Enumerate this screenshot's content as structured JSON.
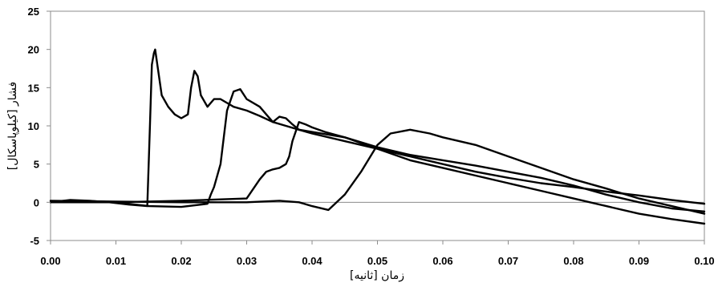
{
  "chart_data": {
    "type": "line",
    "title": "",
    "xlabel": "زمان [ثانیه]",
    "ylabel": "فشار [کیلوپاسکال]",
    "xlim": [
      0.0,
      0.1
    ],
    "ylim": [
      -5,
      25
    ],
    "x_ticks": [
      "0.00",
      "0.01",
      "0.02",
      "0.03",
      "0.04",
      "0.05",
      "0.06",
      "0.07",
      "0.08",
      "0.09",
      "0.10"
    ],
    "y_ticks": [
      "-5",
      "0",
      "5",
      "10",
      "15",
      "20",
      "25"
    ],
    "grid": false,
    "legend": "none",
    "line_color": "#000000",
    "series": [
      {
        "x": [
          0.0,
          0.003,
          0.006,
          0.009,
          0.012,
          0.0148,
          0.0152,
          0.0155,
          0.0158,
          0.016,
          0.0165,
          0.017,
          0.018,
          0.019,
          0.02,
          0.021,
          0.0215,
          0.022,
          0.0225,
          0.023,
          0.024,
          0.025,
          0.026,
          0.027,
          0.028,
          0.03,
          0.032,
          0.034,
          0.036,
          0.038,
          0.04,
          0.045,
          0.05,
          0.055,
          0.06,
          0.065,
          0.07,
          0.075,
          0.08,
          0.085,
          0.09,
          0.095,
          0.1
        ],
        "y": [
          0,
          0.3,
          0.2,
          0,
          -0.3,
          -0.5,
          10,
          18,
          19.5,
          20,
          17,
          14,
          12.5,
          11.5,
          11,
          11.5,
          15,
          17.2,
          16.5,
          14,
          12.5,
          13.5,
          13.5,
          13,
          12.5,
          12,
          11.3,
          10.5,
          10,
          9.5,
          9,
          8,
          7,
          6,
          5,
          4,
          3.2,
          2.5,
          2,
          1.4,
          0.9,
          0.3,
          -0.2
        ]
      },
      {
        "x": [
          0.0,
          0.005,
          0.01,
          0.015,
          0.02,
          0.024,
          0.0245,
          0.025,
          0.025,
          0.026,
          0.027,
          0.028,
          0.029,
          0.03,
          0.032,
          0.033,
          0.034,
          0.035,
          0.036,
          0.037,
          0.038,
          0.04,
          0.045,
          0.05,
          0.055,
          0.06,
          0.065,
          0.07,
          0.075,
          0.08,
          0.085,
          0.09,
          0.095,
          0.1
        ],
        "y": [
          0,
          0.2,
          0,
          -0.5,
          -0.6,
          -0.2,
          1,
          2,
          2,
          5,
          12,
          14.5,
          14.8,
          13.5,
          12.5,
          11.5,
          10.5,
          11.2,
          11,
          10.2,
          9.5,
          9.2,
          8.5,
          7.2,
          6.2,
          5.5,
          4.8,
          4,
          3.2,
          2.2,
          1,
          0,
          -0.8,
          -1.2
        ]
      },
      {
        "x": [
          0.0,
          0.01,
          0.02,
          0.03,
          0.032,
          0.033,
          0.034,
          0.035,
          0.036,
          0.0365,
          0.037,
          0.038,
          0.039,
          0.04,
          0.042,
          0.045,
          0.05,
          0.055,
          0.06,
          0.065,
          0.07,
          0.075,
          0.08,
          0.085,
          0.09,
          0.095,
          0.1
        ],
        "y": [
          0,
          0,
          0.2,
          0.5,
          3,
          4,
          4.3,
          4.5,
          5,
          6,
          8,
          10.5,
          10.2,
          9.8,
          9.2,
          8.5,
          7,
          5.5,
          4.5,
          3.5,
          2.5,
          1.5,
          0.5,
          -0.5,
          -1.5,
          -2.2,
          -2.8
        ]
      },
      {
        "x": [
          0.0,
          0.01,
          0.02,
          0.03,
          0.035,
          0.038,
          0.04,
          0.0425,
          0.045,
          0.0475,
          0.05,
          0.052,
          0.055,
          0.058,
          0.06,
          0.065,
          0.07,
          0.075,
          0.08,
          0.085,
          0.09,
          0.095,
          0.1
        ],
        "y": [
          0.2,
          0.1,
          0,
          0,
          0.2,
          0,
          -0.5,
          -1,
          1,
          4,
          7.5,
          9,
          9.5,
          9,
          8.5,
          7.5,
          6,
          4.5,
          3,
          1.8,
          0.5,
          -0.5,
          -1.5
        ]
      }
    ]
  }
}
